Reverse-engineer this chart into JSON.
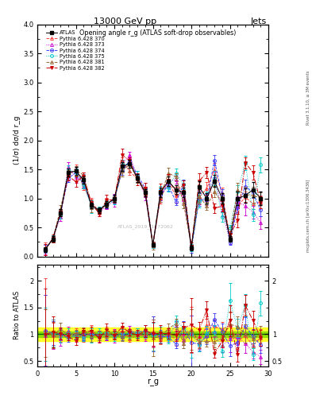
{
  "title_top": "13000 GeV pp",
  "title_right": "Jets",
  "plot_title": "Opening angle r_g (ATLAS soft-drop observables)",
  "ylabel_main": "(1/σ) dσ/d r_g",
  "ylabel_ratio": "Ratio to ATLAS",
  "xlabel": "r_g",
  "right_label_top": "Rivet 3.1.10, ≥ 3M events",
  "right_label_bottom": "mcplots.cern.ch [arXiv:1306.3436]",
  "watermark": "ATLAS_2019_I1772062",
  "xlim": [
    0,
    30
  ],
  "ylim_main": [
    0,
    4
  ],
  "ylim_ratio": [
    0.4,
    2.3
  ],
  "series": [
    {
      "label": "ATLAS",
      "color": "#000000",
      "marker": "s",
      "linestyle": "-",
      "filled": true
    },
    {
      "label": "Pythia 6.428 370",
      "color": "#ff4040",
      "marker": "^",
      "linestyle": "--",
      "filled": false
    },
    {
      "label": "Pythia 6.428 373",
      "color": "#cc00cc",
      "marker": "^",
      "linestyle": ":",
      "filled": false
    },
    {
      "label": "Pythia 6.428 374",
      "color": "#4040ff",
      "marker": "o",
      "linestyle": "--",
      "filled": false
    },
    {
      "label": "Pythia 6.428 375",
      "color": "#00cccc",
      "marker": "o",
      "linestyle": ":",
      "filled": false
    },
    {
      "label": "Pythia 6.428 381",
      "color": "#996633",
      "marker": "^",
      "linestyle": "--",
      "filled": false
    },
    {
      "label": "Pythia 6.428 382",
      "color": "#cc0000",
      "marker": "v",
      "linestyle": "-.",
      "filled": true
    }
  ],
  "atlas_y": [
    0.12,
    0.3,
    0.75,
    1.45,
    1.47,
    1.32,
    0.88,
    0.8,
    0.9,
    1.0,
    1.55,
    1.6,
    1.35,
    1.1,
    0.2,
    1.1,
    1.3,
    1.15,
    1.1,
    0.15,
    1.2,
    1.0,
    1.3,
    1.0,
    0.3,
    1.0,
    1.05,
    1.15,
    1.0
  ],
  "atlas_err": [
    0.04,
    0.05,
    0.06,
    0.07,
    0.07,
    0.06,
    0.05,
    0.05,
    0.05,
    0.06,
    0.07,
    0.07,
    0.07,
    0.06,
    0.03,
    0.08,
    0.08,
    0.08,
    0.08,
    0.04,
    0.1,
    0.09,
    0.1,
    0.09,
    0.05,
    0.12,
    0.12,
    0.13,
    0.12
  ],
  "band_yellow_lo": 0.87,
  "band_yellow_hi": 1.13,
  "band_green_lo": 0.95,
  "band_green_hi": 1.05
}
